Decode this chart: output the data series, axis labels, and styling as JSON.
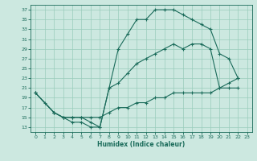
{
  "title": "",
  "xlabel": "Humidex (Indice chaleur)",
  "bg_color": "#cce8e0",
  "grid_color": "#99ccbb",
  "line_color": "#1a6b5a",
  "xlim": [
    -0.5,
    23.5
  ],
  "ylim": [
    12,
    38
  ],
  "xticks": [
    0,
    1,
    2,
    3,
    4,
    5,
    6,
    7,
    8,
    9,
    10,
    11,
    12,
    13,
    14,
    15,
    16,
    17,
    18,
    19,
    20,
    21,
    22,
    23
  ],
  "yticks": [
    13,
    15,
    17,
    19,
    21,
    23,
    25,
    27,
    29,
    31,
    33,
    35,
    37
  ],
  "curve1_x": [
    0,
    1,
    2,
    3,
    4,
    5,
    6,
    7,
    8,
    9,
    10,
    11,
    12,
    13,
    14,
    15,
    16,
    17,
    18,
    19,
    20,
    21,
    22
  ],
  "curve1_y": [
    20,
    18,
    16,
    15,
    14,
    14,
    13,
    13,
    21,
    29,
    32,
    35,
    35,
    37,
    37,
    37,
    36,
    35,
    34,
    33,
    28,
    27,
    23
  ],
  "curve2_x": [
    0,
    2,
    3,
    4,
    5,
    6,
    7,
    8,
    9,
    10,
    11,
    12,
    13,
    14,
    15,
    16,
    17,
    18,
    19,
    20,
    21,
    22
  ],
  "curve2_y": [
    20,
    16,
    15,
    15,
    15,
    14,
    13,
    21,
    22,
    24,
    26,
    27,
    28,
    29,
    30,
    29,
    30,
    30,
    29,
    21,
    22,
    23
  ],
  "curve3_x": [
    0,
    2,
    3,
    4,
    5,
    6,
    7,
    8,
    9,
    10,
    11,
    12,
    13,
    14,
    15,
    16,
    17,
    18,
    19,
    20,
    21,
    22
  ],
  "curve3_y": [
    20,
    16,
    15,
    15,
    15,
    15,
    15,
    16,
    17,
    17,
    18,
    18,
    19,
    19,
    20,
    20,
    20,
    20,
    20,
    21,
    21,
    21
  ]
}
